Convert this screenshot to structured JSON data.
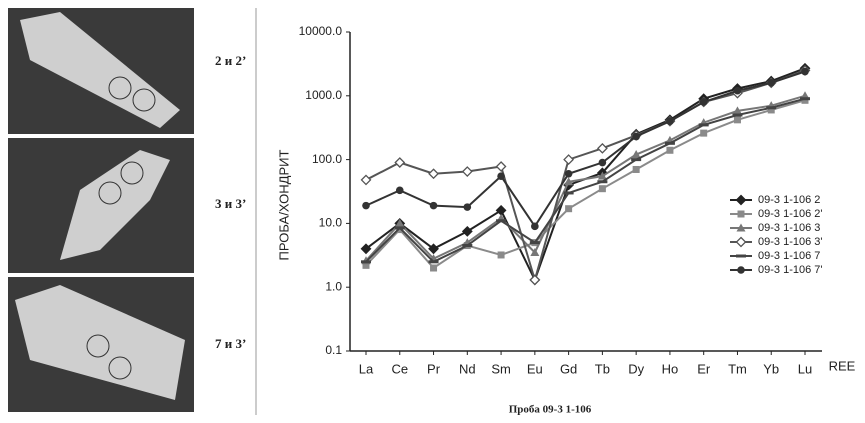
{
  "panel_labels": [
    "2 и 2’",
    "3 и 3’",
    "7 и 3’"
  ],
  "caption": "Проба 09-3 1-106",
  "chart_data": {
    "type": "line",
    "y_label": "ПРОБА/ХОНДРИТ",
    "x_label": "REE",
    "categories": [
      "La",
      "Ce",
      "Pr",
      "Nd",
      "Sm",
      "Eu",
      "Gd",
      "Tb",
      "Dy",
      "Ho",
      "Er",
      "Tm",
      "Yb",
      "Lu"
    ],
    "log_y": true,
    "ylim": [
      0.1,
      10000
    ],
    "yticks": [
      0.1,
      {
        "value": 1,
        "label": "1.0"
      },
      {
        "value": 10,
        "label": "10.0"
      },
      {
        "value": 100,
        "label": "100.0"
      },
      {
        "value": 1000,
        "label": "1000.0"
      },
      {
        "value": 10000,
        "label": "10000.0"
      }
    ],
    "legend": "right",
    "series": [
      {
        "name": "09-3 1-106 2",
        "color": "#222222",
        "marker": "diamond",
        "values": [
          4,
          10,
          4,
          7.5,
          16,
          1.3,
          40,
          62,
          250,
          420,
          900,
          1300,
          1700,
          2700
        ]
      },
      {
        "name": "09-3 1-106 2'",
        "color": "#8a8a8a",
        "marker": "square",
        "values": [
          2.2,
          8,
          2,
          4.5,
          3.2,
          5,
          17,
          35,
          70,
          140,
          260,
          420,
          600,
          850
        ]
      },
      {
        "name": "09-3 1-106 3",
        "color": "#777777",
        "marker": "triangle",
        "values": [
          2.6,
          10,
          2.8,
          5,
          12,
          3.5,
          45,
          55,
          120,
          200,
          380,
          580,
          700,
          1000
        ]
      },
      {
        "name": "09-3 1-106 3'",
        "color": "#555555",
        "marker": "open-diamond",
        "values": [
          48,
          90,
          60,
          65,
          78,
          1.3,
          100,
          150,
          240,
          400,
          800,
          1100,
          1600,
          2500
        ]
      },
      {
        "name": "09-3 1-106 7",
        "color": "#444444",
        "marker": "dash",
        "values": [
          2.5,
          8.5,
          2.5,
          4.5,
          11,
          5,
          30,
          45,
          100,
          180,
          350,
          500,
          650,
          900
        ]
      },
      {
        "name": "09-3 1-106 7'",
        "color": "#333333",
        "marker": "circle",
        "values": [
          19,
          33,
          19,
          18,
          55,
          9,
          60,
          90,
          230,
          400,
          800,
          1200,
          1600,
          2400
        ]
      }
    ]
  }
}
